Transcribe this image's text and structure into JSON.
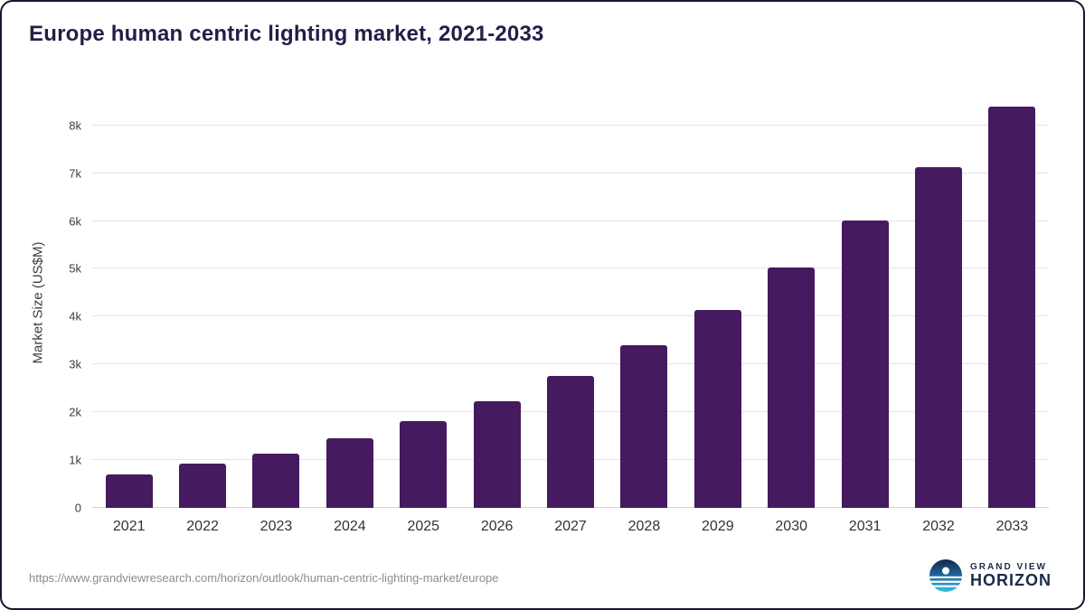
{
  "title": "Europe human centric lighting market, 2021-2033",
  "footer": {
    "source_url": "https://www.grandviewresearch.com/horizon/outlook/human-centric-lighting-market/europe",
    "logo_line1": "GRAND VIEW",
    "logo_line2": "HORIZON"
  },
  "colors": {
    "bar": "#451a5e",
    "title": "#241d47",
    "grid": "#e4e4e4",
    "axis_text": "#3c3c3c",
    "url_text": "#8d8d8d",
    "logo_text": "#1b2a4a"
  },
  "chart_data": {
    "type": "bar",
    "categories": [
      "2021",
      "2022",
      "2023",
      "2024",
      "2025",
      "2026",
      "2027",
      "2028",
      "2029",
      "2030",
      "2031",
      "2032",
      "2033"
    ],
    "values": [
      700,
      920,
      1140,
      1450,
      1810,
      2240,
      2760,
      3400,
      4140,
      5030,
      6010,
      7120,
      8400
    ],
    "title": "Europe human centric lighting market, 2021-2033",
    "xlabel": "",
    "ylabel": "Market Size (US$M)",
    "ylim": [
      0,
      8600
    ],
    "ytick_step": 1000,
    "ytick_labels": [
      "0",
      "1k",
      "2k",
      "3k",
      "4k",
      "5k",
      "6k",
      "7k",
      "8k"
    ],
    "grid": "horizontal",
    "legend": "none"
  }
}
